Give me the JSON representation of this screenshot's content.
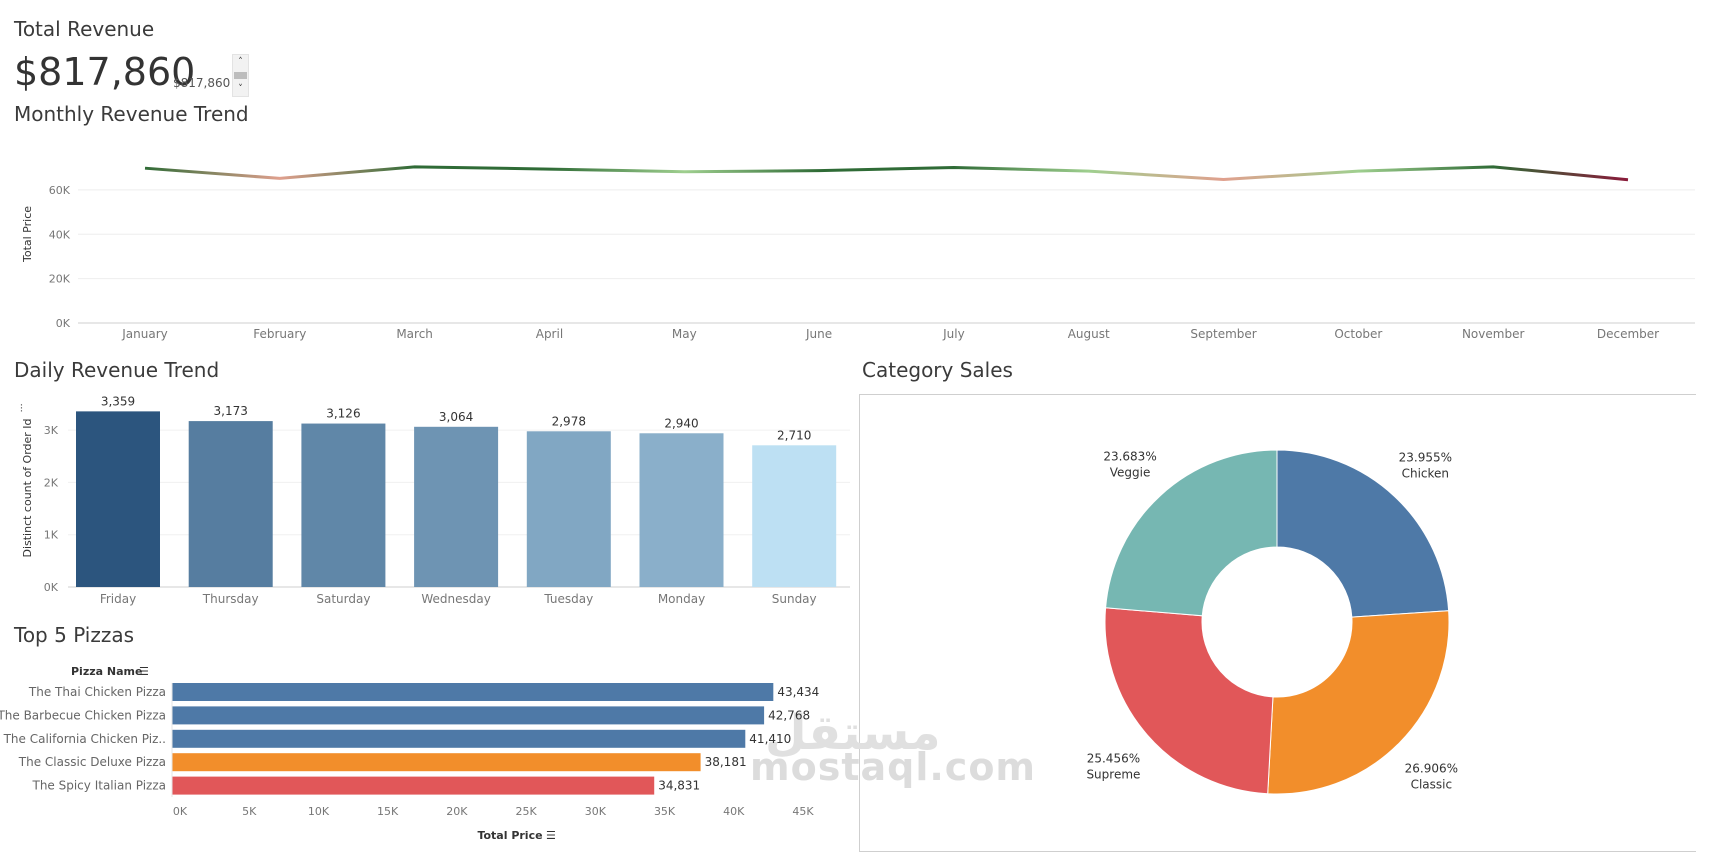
{
  "kpi": {
    "title": "Total Revenue",
    "value": "$817,860",
    "small_value": "$817,860",
    "up_glyph": "˄",
    "down_glyph": "˅"
  },
  "titles": {
    "monthly": "Monthly Revenue Trend",
    "daily": "Daily Revenue Trend",
    "category": "Category Sales",
    "top5": "Top 5 Pizzas"
  },
  "watermark": {
    "arabic": "مستقل",
    "latin": "mostaql.com"
  },
  "colors": {
    "line_high": "#2f6b36",
    "line_low": "#e0a08e",
    "line_mid": "#9fcf8f",
    "line_dec": "#8a1a3a",
    "bar_dark": "#2c557e",
    "bar_light": "#bde0f3",
    "blue": "#4e79a7",
    "orange": "#f28e2b",
    "red": "#e15759",
    "teal": "#76b7b2"
  },
  "chart_data": [
    {
      "type": "line",
      "title": "Monthly Revenue Trend",
      "ylabel": "Total Price",
      "x": [
        "January",
        "February",
        "March",
        "April",
        "May",
        "June",
        "July",
        "August",
        "September",
        "October",
        "November",
        "December"
      ],
      "values": [
        69800,
        65200,
        70400,
        69400,
        68200,
        68700,
        70100,
        68500,
        64700,
        68500,
        70400,
        64600
      ],
      "yticks": [
        "0K",
        "20K",
        "40K",
        "60K"
      ],
      "ylim": [
        0,
        78000
      ],
      "grid": true
    },
    {
      "type": "bar",
      "title": "Daily Revenue Trend",
      "ylabel": "Distinct count of Order Id",
      "categories": [
        "Friday",
        "Thursday",
        "Saturday",
        "Wednesday",
        "Tuesday",
        "Monday",
        "Sunday"
      ],
      "values": [
        3359,
        3173,
        3126,
        3064,
        2978,
        2940,
        2710
      ],
      "labels": [
        "3,359",
        "3,173",
        "3,126",
        "3,064",
        "2,978",
        "2,940",
        "2,710"
      ],
      "yticks": [
        "0K",
        "1K",
        "2K",
        "3K"
      ],
      "ylim": [
        0,
        3500
      ]
    },
    {
      "type": "bar",
      "orientation": "horizontal",
      "title": "Top 5 Pizzas",
      "ylabel": "Pizza Name",
      "xlabel": "Total Price",
      "categories": [
        "The Thai Chicken Pizza",
        "The Barbecue Chicken Pizza",
        "The California Chicken Piz..",
        "The Classic Deluxe Pizza",
        "The Spicy Italian Pizza"
      ],
      "values": [
        43434,
        42768,
        41410,
        38181,
        34831
      ],
      "labels": [
        "43,434",
        "42,768",
        "41,410",
        "38,181",
        "34,831"
      ],
      "bar_colors": [
        "#4e79a7",
        "#4e79a7",
        "#4e79a7",
        "#f28e2b",
        "#e15759"
      ],
      "xticks": [
        "0K",
        "5K",
        "10K",
        "15K",
        "20K",
        "25K",
        "30K",
        "35K",
        "40K",
        "45K"
      ],
      "xlim": [
        0,
        45000
      ]
    },
    {
      "type": "pie",
      "title": "Category Sales",
      "categories": [
        "Chicken",
        "Classic",
        "Supreme",
        "Veggie"
      ],
      "values": [
        23.955,
        26.906,
        25.456,
        23.683
      ],
      "labels": [
        "23.955%",
        "26.906%",
        "25.456%",
        "23.683%"
      ],
      "colors": [
        "#4e79a7",
        "#f28e2b",
        "#e15759",
        "#76b7b2"
      ],
      "donut": true
    }
  ]
}
